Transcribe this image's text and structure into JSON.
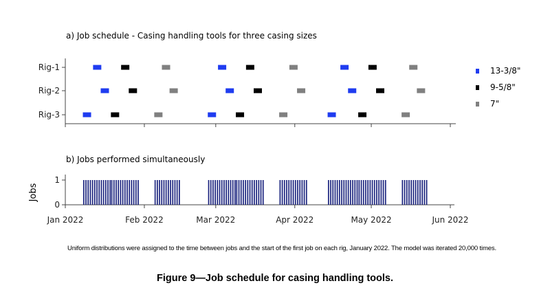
{
  "chart_data": [
    {
      "type": "scatter",
      "title": "a) Job schedule - Casing handling tools for three casing sizes",
      "xaxis": {
        "type": "date",
        "range": [
          "2022-01-01",
          "2022-06-01"
        ],
        "ticks": [],
        "tick_labels": []
      },
      "yaxis": {
        "categories": [
          "Rig-1",
          "Rig-2",
          "Rig-3"
        ]
      },
      "grid": false,
      "legend_position": "right",
      "series": [
        {
          "name": "13-3/8\"",
          "color": "#1f3cf0",
          "points": [
            {
              "rig": "Rig-1",
              "start": "2022-01-12",
              "end": "2022-01-15"
            },
            {
              "rig": "Rig-1",
              "start": "2022-03-02",
              "end": "2022-03-05"
            },
            {
              "rig": "Rig-1",
              "start": "2022-04-19",
              "end": "2022-04-22"
            },
            {
              "rig": "Rig-2",
              "start": "2022-01-15",
              "end": "2022-01-18"
            },
            {
              "rig": "Rig-2",
              "start": "2022-03-05",
              "end": "2022-03-08"
            },
            {
              "rig": "Rig-2",
              "start": "2022-04-22",
              "end": "2022-04-25"
            },
            {
              "rig": "Rig-3",
              "start": "2022-01-08",
              "end": "2022-01-11"
            },
            {
              "rig": "Rig-3",
              "start": "2022-02-26",
              "end": "2022-03-01"
            },
            {
              "rig": "Rig-3",
              "start": "2022-04-14",
              "end": "2022-04-17"
            }
          ]
        },
        {
          "name": "9-5/8\"",
          "color": "#000000",
          "points": [
            {
              "rig": "Rig-1",
              "start": "2022-01-23",
              "end": "2022-01-26"
            },
            {
              "rig": "Rig-1",
              "start": "2022-03-13",
              "end": "2022-03-16"
            },
            {
              "rig": "Rig-1",
              "start": "2022-04-30",
              "end": "2022-05-03"
            },
            {
              "rig": "Rig-2",
              "start": "2022-01-26",
              "end": "2022-01-29"
            },
            {
              "rig": "Rig-2",
              "start": "2022-03-16",
              "end": "2022-03-19"
            },
            {
              "rig": "Rig-2",
              "start": "2022-05-03",
              "end": "2022-05-06"
            },
            {
              "rig": "Rig-3",
              "start": "2022-01-19",
              "end": "2022-01-22"
            },
            {
              "rig": "Rig-3",
              "start": "2022-03-09",
              "end": "2022-03-12"
            },
            {
              "rig": "Rig-3",
              "start": "2022-04-26",
              "end": "2022-04-29"
            }
          ]
        },
        {
          "name": "7\"",
          "color": "#808080",
          "points": [
            {
              "rig": "Rig-1",
              "start": "2022-02-08",
              "end": "2022-02-11"
            },
            {
              "rig": "Rig-1",
              "start": "2022-03-30",
              "end": "2022-04-02"
            },
            {
              "rig": "Rig-1",
              "start": "2022-05-16",
              "end": "2022-05-19"
            },
            {
              "rig": "Rig-2",
              "start": "2022-02-11",
              "end": "2022-02-14"
            },
            {
              "rig": "Rig-2",
              "start": "2022-04-02",
              "end": "2022-04-05"
            },
            {
              "rig": "Rig-2",
              "start": "2022-05-19",
              "end": "2022-05-22"
            },
            {
              "rig": "Rig-3",
              "start": "2022-02-05",
              "end": "2022-02-08"
            },
            {
              "rig": "Rig-3",
              "start": "2022-03-26",
              "end": "2022-03-29"
            },
            {
              "rig": "Rig-3",
              "start": "2022-05-13",
              "end": "2022-05-16"
            }
          ]
        }
      ]
    },
    {
      "type": "bar",
      "title": "b) Jobs performed simultaneously",
      "ylabel": "Jobs",
      "ylim": [
        0,
        1
      ],
      "y_ticks": [
        "0",
        "1"
      ],
      "xaxis": {
        "type": "date",
        "range": [
          "2022-01-01",
          "2022-06-01"
        ],
        "ticks": [
          "2022-01-01",
          "2022-02-01",
          "2022-03-01",
          "2022-04-01",
          "2022-05-01",
          "2022-06-01"
        ],
        "tick_labels": [
          "Jan 2022",
          "Feb 2022",
          "Mar 2022",
          "Apr 2022",
          "May 2022",
          "Jun 2022"
        ]
      },
      "color": "#1a237e",
      "periods": [
        {
          "start": "2022-01-08",
          "end": "2022-01-18",
          "value": 1
        },
        {
          "start": "2022-01-19",
          "end": "2022-01-29",
          "value": 1
        },
        {
          "start": "2022-02-05",
          "end": "2022-02-14",
          "value": 1
        },
        {
          "start": "2022-02-26",
          "end": "2022-03-08",
          "value": 1
        },
        {
          "start": "2022-03-09",
          "end": "2022-03-19",
          "value": 1
        },
        {
          "start": "2022-03-26",
          "end": "2022-04-05",
          "value": 1
        },
        {
          "start": "2022-04-14",
          "end": "2022-04-25",
          "value": 1
        },
        {
          "start": "2022-04-26",
          "end": "2022-05-06",
          "value": 1
        },
        {
          "start": "2022-05-13",
          "end": "2022-05-22",
          "value": 1
        }
      ]
    }
  ],
  "footnote": "Uniform distributions were assigned to the time between jobs and the start of the first job on each rig, January 2022. The model was iterated 20,000 times.",
  "caption": "Figure 9—Job schedule for casing handling tools."
}
